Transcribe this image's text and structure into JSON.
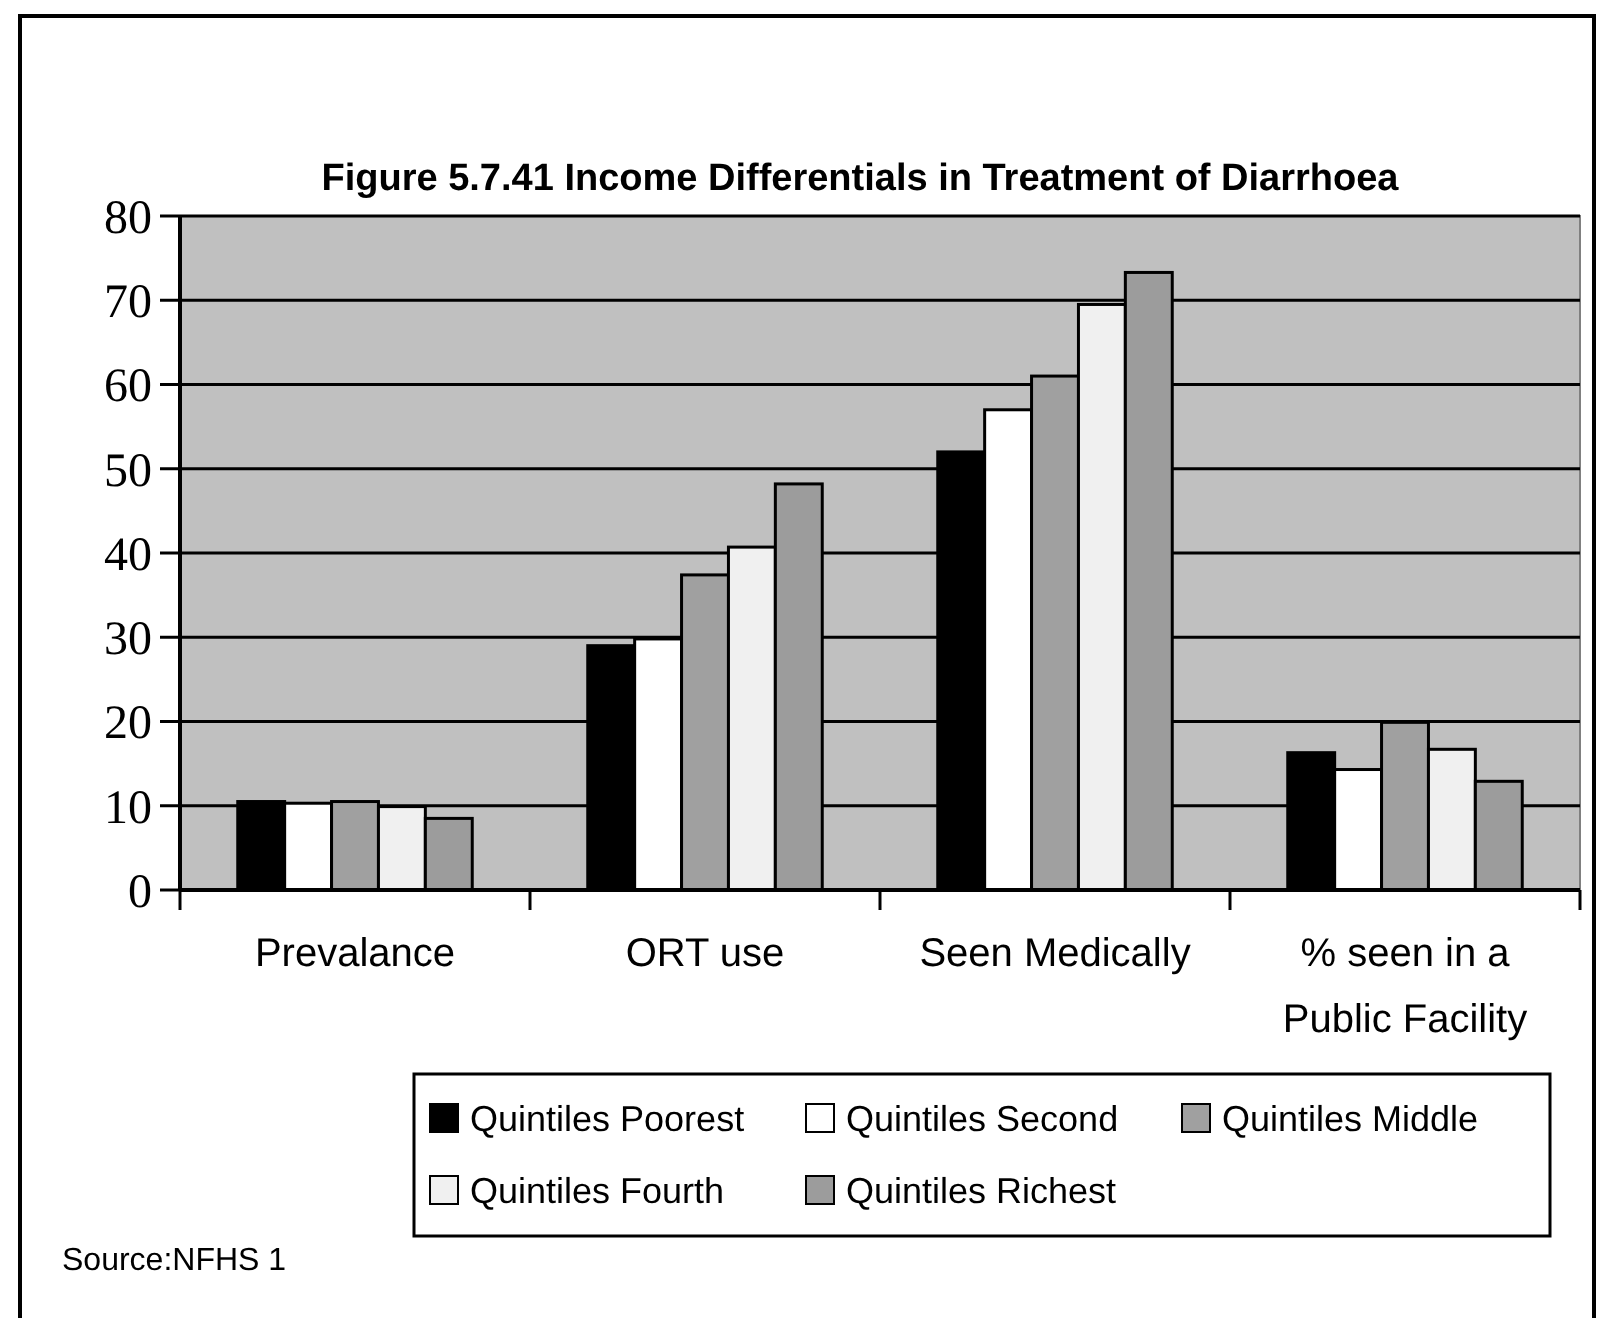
{
  "chart_data": {
    "type": "bar",
    "title": "Figure 5.7.41 Income Differentials in Treatment of Diarrhoea",
    "categories": [
      "Prevalance",
      "ORT use",
      "Seen Medically",
      "% seen in a Public Facility"
    ],
    "series": [
      {
        "name": "Quintiles Poorest",
        "color": "#000000",
        "values": [
          10.5,
          29.0,
          52.0,
          16.3
        ]
      },
      {
        "name": "Quintiles Second",
        "color": "#ffffff",
        "values": [
          10.3,
          29.8,
          57.0,
          14.3
        ]
      },
      {
        "name": "Quintiles Middle",
        "color": "#a0a0a0",
        "values": [
          10.5,
          37.4,
          61.0,
          19.9
        ]
      },
      {
        "name": "Quintiles Fourth",
        "color": "#f0f0f0",
        "values": [
          9.9,
          40.7,
          69.5,
          16.7
        ]
      },
      {
        "name": "Quintiles Richest",
        "color": "#9c9c9c",
        "values": [
          8.5,
          48.2,
          73.3,
          12.9
        ]
      }
    ],
    "ylim": [
      0,
      80
    ],
    "yticks": [
      0,
      10,
      20,
      30,
      40,
      50,
      60,
      70,
      80
    ],
    "grid": "y",
    "legend": "bottom",
    "annotations": [
      "Source:NFHS 1"
    ]
  }
}
